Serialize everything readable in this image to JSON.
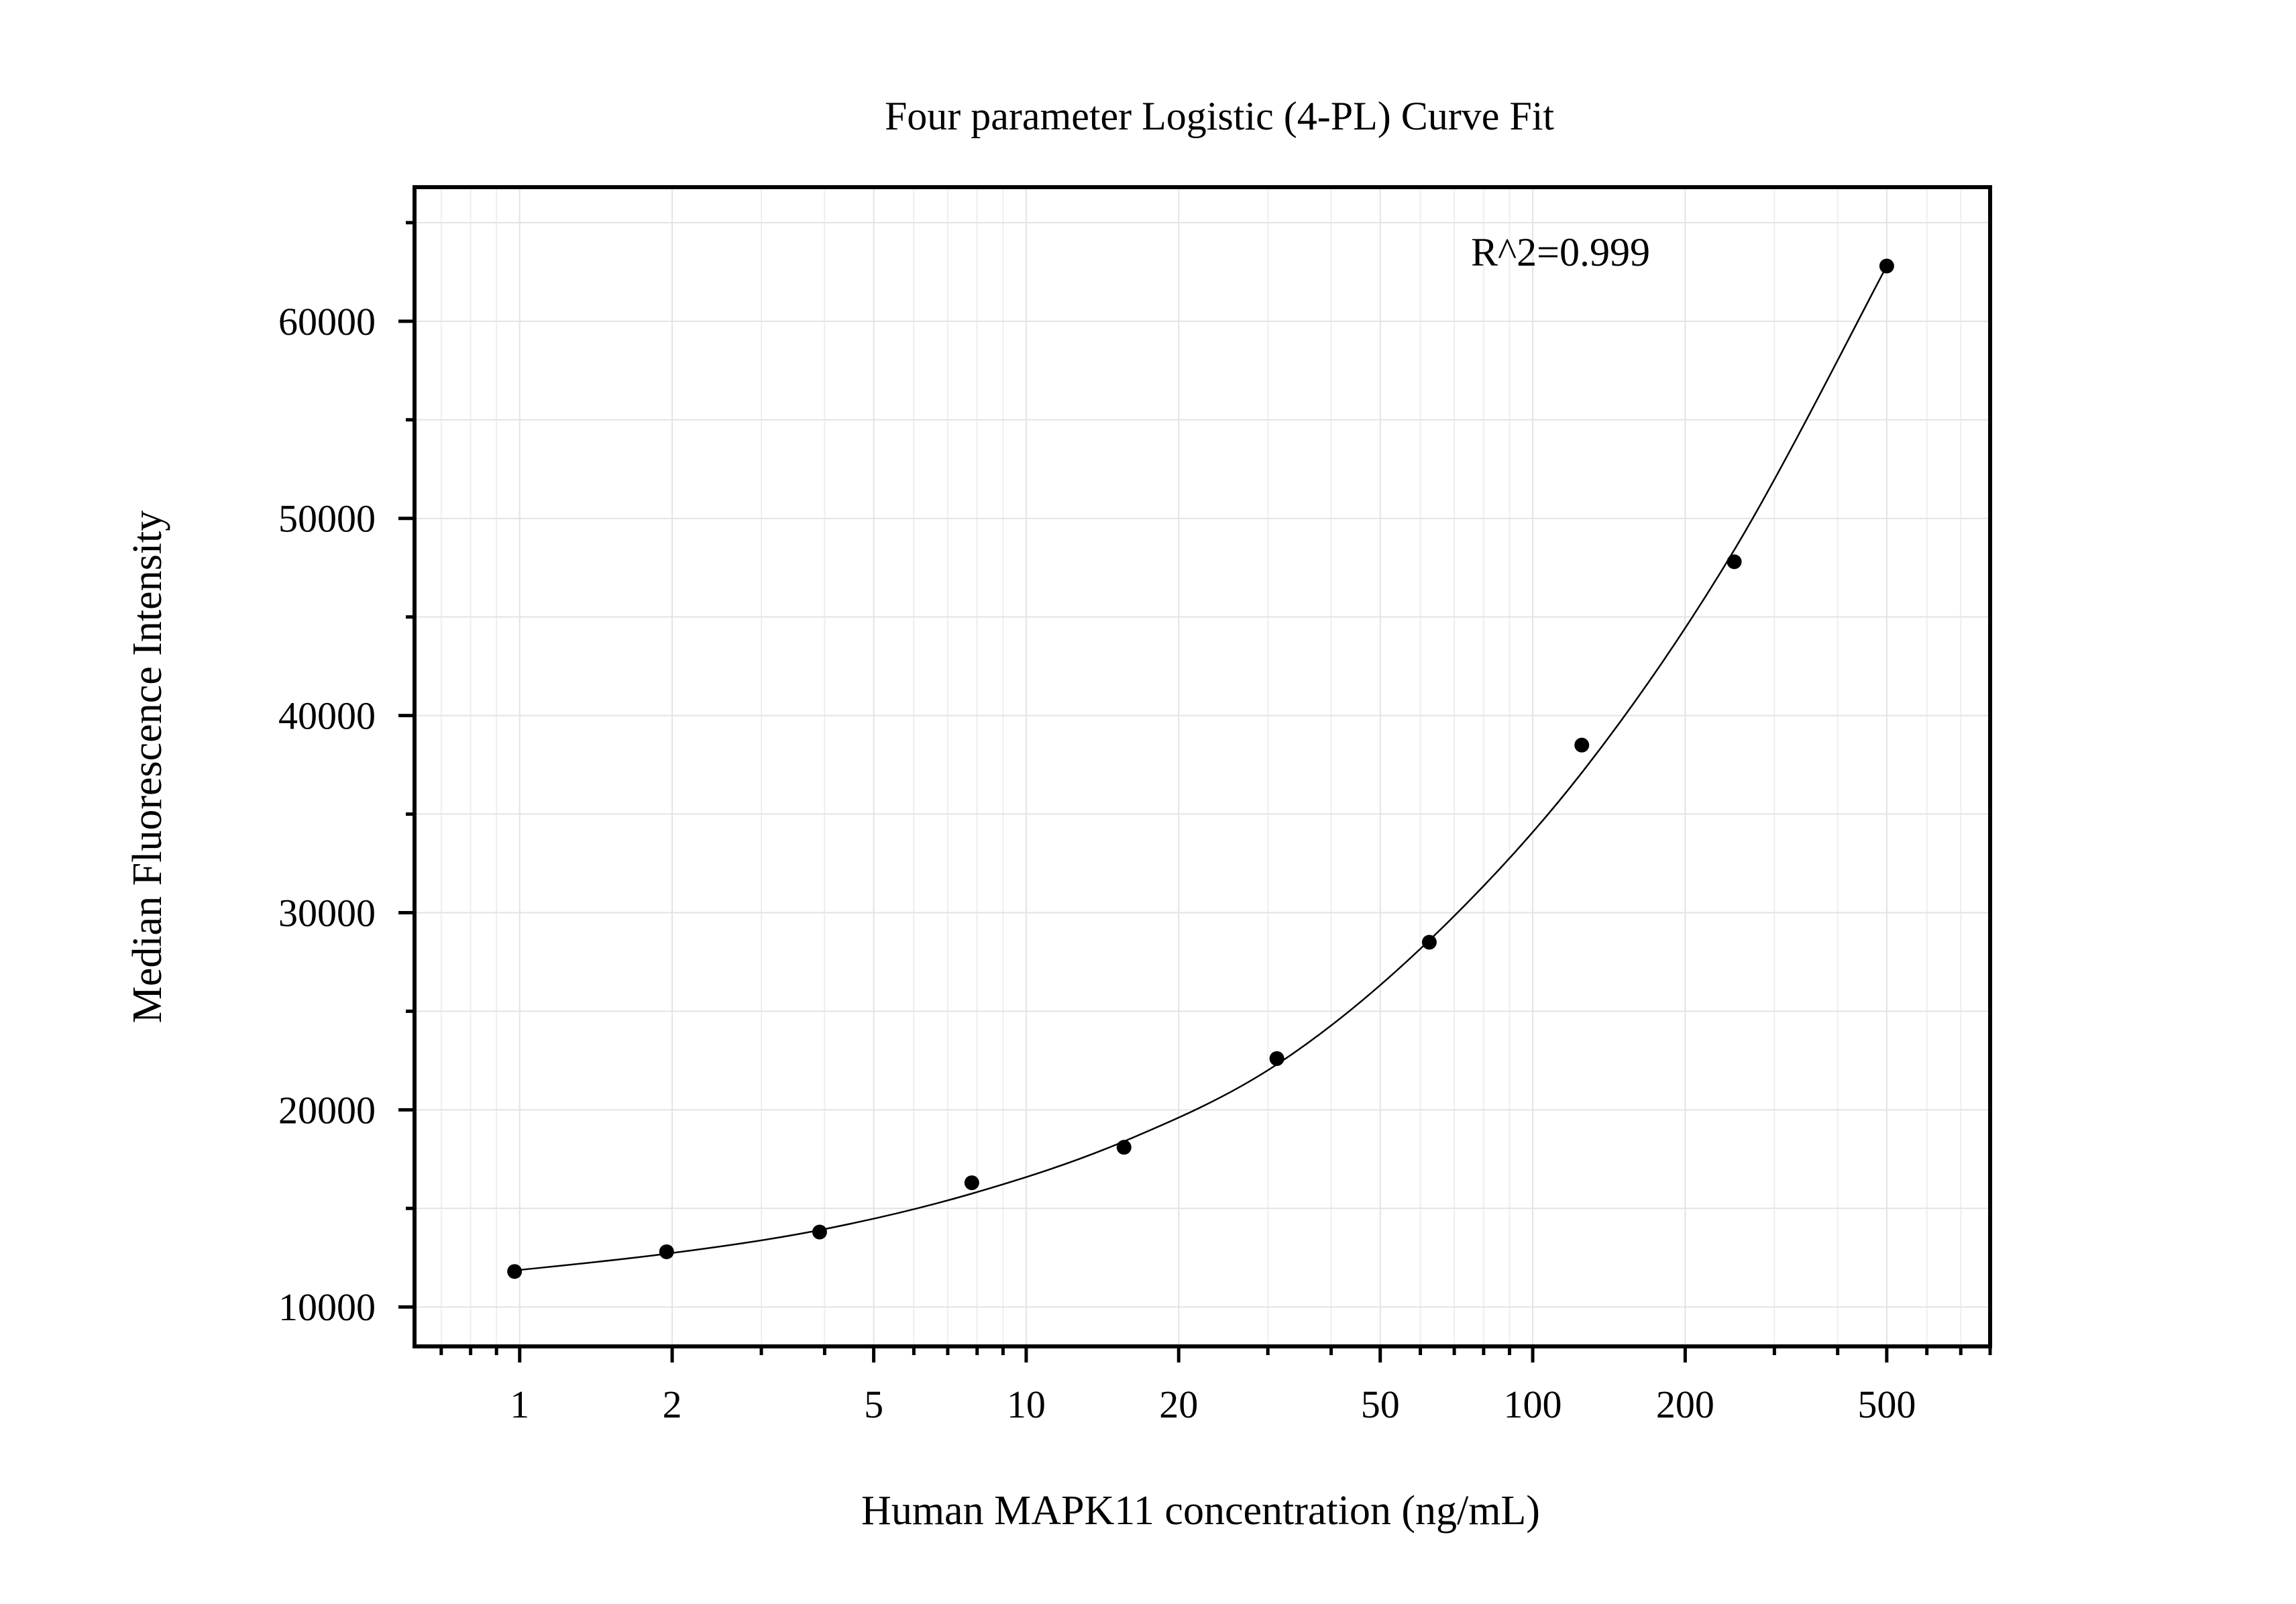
{
  "chart_data": {
    "type": "scatter",
    "title": "Four parameter Logistic (4-PL) Curve Fit",
    "xlabel": "Human MAPK11 concentration (ng/mL)",
    "ylabel": "Median Fluorescence Intensity",
    "annotation": "R^2=0.999",
    "x_scale": "log",
    "xlim": [
      0.62,
      800
    ],
    "ylim": [
      8000,
      66800
    ],
    "grid": true,
    "x_ticks": [
      1,
      2,
      5,
      10,
      20,
      50,
      100,
      200,
      500
    ],
    "x_tick_labels": [
      "1",
      "2",
      "5",
      "10",
      "20",
      "50",
      "100",
      "200",
      "500"
    ],
    "y_ticks": [
      10000,
      20000,
      30000,
      40000,
      50000,
      60000
    ],
    "y_tick_labels": [
      "10000",
      "20000",
      "30000",
      "40000",
      "50000",
      "60000"
    ],
    "series": [
      {
        "type": "scatter",
        "x": [
          0.977,
          1.95,
          3.91,
          7.81,
          15.6,
          31.25,
          62.5,
          125,
          250,
          500
        ],
        "y": [
          11800,
          12800,
          13800,
          16300,
          18100,
          22600,
          28500,
          38500,
          47800,
          62800
        ]
      },
      {
        "type": "line",
        "x": [
          0.977,
          1.95,
          3.91,
          7.81,
          15.6,
          31.25,
          62.5,
          125,
          250,
          500
        ],
        "y": [
          11850,
          12700,
          13900,
          15750,
          18400,
          22300,
          28600,
          37100,
          48400,
          62800
        ]
      }
    ]
  }
}
